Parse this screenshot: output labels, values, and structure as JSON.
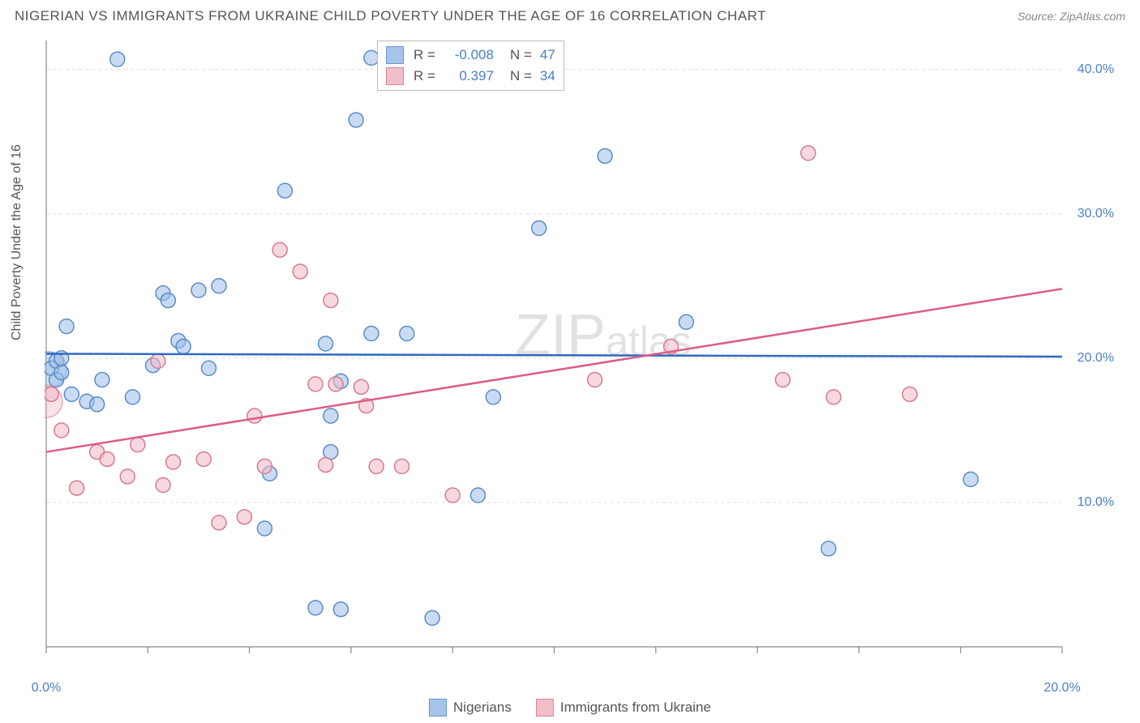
{
  "title": "NIGERIAN VS IMMIGRANTS FROM UKRAINE CHILD POVERTY UNDER THE AGE OF 16 CORRELATION CHART",
  "source": "Source: ZipAtlas.com",
  "ylabel": "Child Poverty Under the Age of 16",
  "watermark": "ZIPatlas",
  "chart": {
    "type": "scatter",
    "background_color": "#ffffff",
    "grid_color": "#dddddd",
    "axis_color": "#888888",
    "tick_color": "#888888",
    "label_color": "#4a7ec9",
    "xlim": [
      0,
      20
    ],
    "ylim": [
      0,
      42
    ],
    "xticks": [
      0,
      2,
      4,
      6,
      8,
      10,
      12,
      14,
      16,
      18,
      20
    ],
    "xtick_labeled": {
      "0": "0.0%",
      "20": "20.0%"
    },
    "yticks": [
      10,
      20,
      30,
      40
    ],
    "ytick_labels": [
      "10.0%",
      "20.0%",
      "30.0%",
      "40.0%"
    ],
    "marker_radius": 9,
    "marker_stroke_width": 1.5,
    "trend_width": 2.5,
    "series": [
      {
        "name": "Nigerians",
        "fill": "#9dbde8",
        "stroke": "#5a8cc7",
        "fill_opacity": 0.55,
        "R": "-0.008",
        "N": "47",
        "trend": {
          "x1": 0,
          "y1": 20.3,
          "x2": 20,
          "y2": 20.1,
          "color": "#2f6ac0"
        },
        "points": [
          [
            0.1,
            19.3
          ],
          [
            0.2,
            19.8
          ],
          [
            0.2,
            18.5
          ],
          [
            0.3,
            19.0
          ],
          [
            0.3,
            20.0
          ],
          [
            0.4,
            22.2
          ],
          [
            0.5,
            17.5
          ],
          [
            0.8,
            17.0
          ],
          [
            1.1,
            18.5
          ],
          [
            1.0,
            16.8
          ],
          [
            1.4,
            40.7
          ],
          [
            1.7,
            17.3
          ],
          [
            2.1,
            19.5
          ],
          [
            2.3,
            24.5
          ],
          [
            2.4,
            24.0
          ],
          [
            2.6,
            21.2
          ],
          [
            2.7,
            20.8
          ],
          [
            3.0,
            24.7
          ],
          [
            3.2,
            19.3
          ],
          [
            3.4,
            25.0
          ],
          [
            4.3,
            8.2
          ],
          [
            4.4,
            12.0
          ],
          [
            4.7,
            31.6
          ],
          [
            5.3,
            2.7
          ],
          [
            5.5,
            21.0
          ],
          [
            5.6,
            16.0
          ],
          [
            5.6,
            13.5
          ],
          [
            5.8,
            2.6
          ],
          [
            5.8,
            18.4
          ],
          [
            6.1,
            36.5
          ],
          [
            6.4,
            40.8
          ],
          [
            6.4,
            21.7
          ],
          [
            6.8,
            39.2
          ],
          [
            7.1,
            21.7
          ],
          [
            7.6,
            2.0
          ],
          [
            8.5,
            10.5
          ],
          [
            8.8,
            17.3
          ],
          [
            9.7,
            29.0
          ],
          [
            11.0,
            34.0
          ],
          [
            12.6,
            22.5
          ],
          [
            15.4,
            6.8
          ],
          [
            18.2,
            11.6
          ]
        ],
        "big_points": [
          [
            0.05,
            19.2,
            22
          ]
        ]
      },
      {
        "name": "Immigrants from Ukraine",
        "fill": "#f0b8c5",
        "stroke": "#d87a93",
        "fill_opacity": 0.55,
        "R": "0.397",
        "N": "34",
        "trend": {
          "x1": 0,
          "y1": 13.5,
          "x2": 20,
          "y2": 24.8,
          "color": "#e05a85"
        },
        "points": [
          [
            0.1,
            17.5
          ],
          [
            0.3,
            15.0
          ],
          [
            0.6,
            11.0
          ],
          [
            1.0,
            13.5
          ],
          [
            1.2,
            13.0
          ],
          [
            1.6,
            11.8
          ],
          [
            1.8,
            14.0
          ],
          [
            2.2,
            19.8
          ],
          [
            2.3,
            11.2
          ],
          [
            2.5,
            12.8
          ],
          [
            3.1,
            13.0
          ],
          [
            3.4,
            8.6
          ],
          [
            3.9,
            9.0
          ],
          [
            4.1,
            16.0
          ],
          [
            4.3,
            12.5
          ],
          [
            4.6,
            27.5
          ],
          [
            5.0,
            26.0
          ],
          [
            5.3,
            18.2
          ],
          [
            5.5,
            12.6
          ],
          [
            5.6,
            24.0
          ],
          [
            5.7,
            18.2
          ],
          [
            6.2,
            18.0
          ],
          [
            6.3,
            16.7
          ],
          [
            6.5,
            12.5
          ],
          [
            7.0,
            12.5
          ],
          [
            8.0,
            10.5
          ],
          [
            10.8,
            18.5
          ],
          [
            12.3,
            20.8
          ],
          [
            14.5,
            18.5
          ],
          [
            15.0,
            34.2
          ],
          [
            15.5,
            17.3
          ],
          [
            17.0,
            17.5
          ]
        ],
        "big_points": [
          [
            0.0,
            17.0,
            20
          ]
        ]
      }
    ]
  },
  "legend_bottom": {
    "series1_label": "Nigerians",
    "series2_label": "Immigrants from Ukraine"
  }
}
